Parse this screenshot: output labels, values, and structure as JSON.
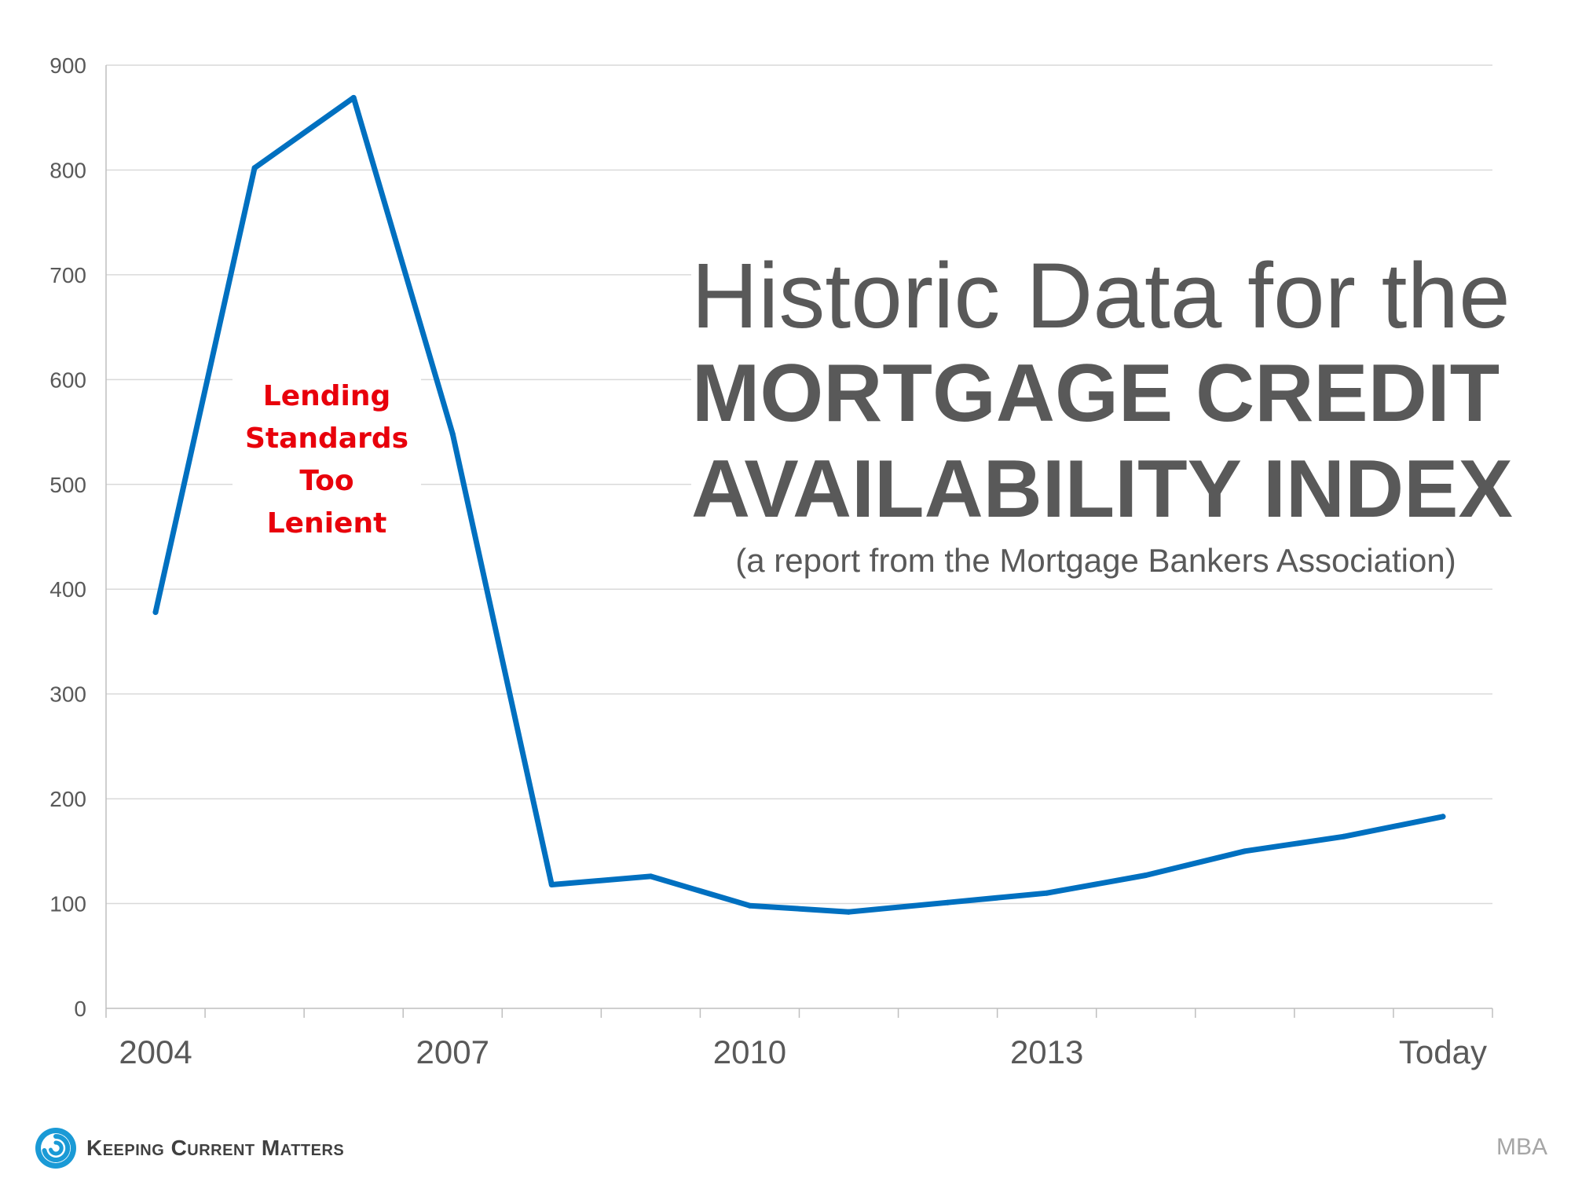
{
  "chart_data": {
    "type": "line",
    "title": "Historic Data for the",
    "title_emphasis_line1": "MORTGAGE CREDIT",
    "title_emphasis_line2": "AVAILABILITY INDEX",
    "subtitle": "(a report from the Mortgage Bankers Association)",
    "xlabel": "",
    "ylabel": "",
    "ylim": [
      0,
      900
    ],
    "y_ticks": [
      "0",
      "100",
      "200",
      "300",
      "400",
      "500",
      "600",
      "700",
      "800",
      "900"
    ],
    "x_tick_labels": [
      "2004",
      "2007",
      "2010",
      "2013",
      "Today"
    ],
    "grid": true,
    "legend": "none",
    "line_color": "#0070c0",
    "series": [
      {
        "values": [
          378,
          802,
          869,
          548,
          118,
          126,
          98,
          92,
          101,
          110,
          127,
          150,
          164,
          183
        ]
      }
    ],
    "annotation": {
      "lines": [
        "Lending",
        "Standards",
        "Too",
        "Lenient"
      ],
      "color": "#e8000b"
    }
  },
  "footer": {
    "brand": "Keeping Current Matters",
    "brand_icon": "swirl-logo-icon",
    "source": "MBA"
  }
}
